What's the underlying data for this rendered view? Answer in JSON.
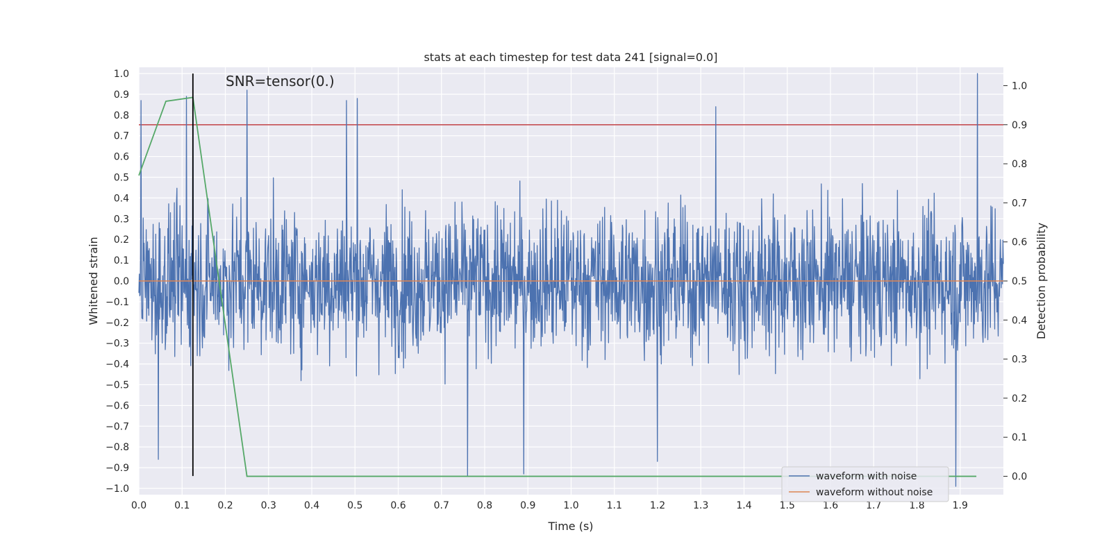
{
  "chart_data": {
    "type": "line",
    "title": "stats at each timestep for test data 241 [signal=0.0]",
    "xlabel": "Time (s)",
    "ylabel": "Whitened strain",
    "y2label": "Detection probability",
    "annotation": "SNR=tensor(0.)",
    "xlim": [
      0.0,
      2.0
    ],
    "ylim": [
      -1.03,
      1.03
    ],
    "y2lim": [
      -0.047,
      1.047
    ],
    "x_ticks": [
      "0.0",
      "0.1",
      "0.2",
      "0.3",
      "0.4",
      "0.5",
      "0.6",
      "0.7",
      "0.8",
      "0.9",
      "1.0",
      "1.1",
      "1.2",
      "1.3",
      "1.4",
      "1.5",
      "1.6",
      "1.7",
      "1.8",
      "1.9"
    ],
    "y_ticks": [
      "1.0",
      "0.9",
      "0.8",
      "0.7",
      "0.6",
      "0.5",
      "0.4",
      "0.3",
      "0.2",
      "0.1",
      "0.0",
      "−0.1",
      "−0.2",
      "−0.3",
      "−0.4",
      "−0.5",
      "−0.6",
      "−0.7",
      "−0.8",
      "−0.9",
      "−1.0"
    ],
    "y2_ticks": [
      "1.0",
      "0.9",
      "0.8",
      "0.7",
      "0.6",
      "0.5",
      "0.4",
      "0.3",
      "0.2",
      "0.1",
      "0.0"
    ],
    "threshold": {
      "name": "detection threshold",
      "y2": 0.9,
      "color": "#c44e52"
    },
    "marker_line": {
      "name": "event marker",
      "x": 0.125,
      "y_from": -0.94,
      "y_to": 1.0,
      "color": "#000000"
    },
    "noise_series": {
      "name": "waveform with noise",
      "color": "#4c72b0",
      "sample_count": 2000,
      "amplitude": 0.33,
      "spikes": [
        {
          "x": 0.005,
          "y": 0.87
        },
        {
          "x": 0.045,
          "y": -0.86
        },
        {
          "x": 0.11,
          "y": 0.89
        },
        {
          "x": 0.125,
          "y": 0.97
        },
        {
          "x": 0.25,
          "y": 0.92
        },
        {
          "x": 0.48,
          "y": 0.87
        },
        {
          "x": 0.505,
          "y": 0.88
        },
        {
          "x": 0.76,
          "y": -0.94
        },
        {
          "x": 0.89,
          "y": -0.93
        },
        {
          "x": 1.2,
          "y": -0.87
        },
        {
          "x": 1.335,
          "y": 0.84
        },
        {
          "x": 1.89,
          "y": -0.99
        },
        {
          "x": 1.94,
          "y": 1.0
        }
      ]
    },
    "clean_series": {
      "name": "waveform without noise",
      "color": "#dd8452",
      "x": [
        0.0,
        2.0
      ],
      "y": [
        0.0,
        0.0
      ]
    },
    "probability_series": {
      "name": "detection probability",
      "color": "#55a868",
      "x": [
        0.0,
        0.0625,
        0.125,
        0.25,
        0.5,
        1.0,
        1.5,
        1.9375
      ],
      "y": [
        0.77,
        0.96,
        0.97,
        0.0,
        0.0,
        0.0,
        0.0,
        0.0
      ]
    },
    "legend": {
      "position": "lower-right",
      "entries": [
        {
          "label": "waveform with noise",
          "color": "#4c72b0"
        },
        {
          "label": "waveform without noise",
          "color": "#dd8452"
        }
      ]
    },
    "grid": true
  }
}
